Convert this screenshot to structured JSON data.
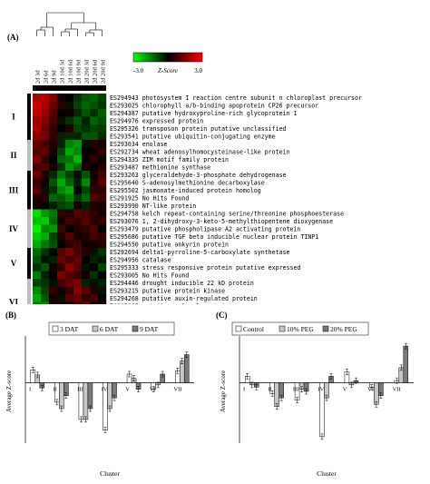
{
  "panel_labels": {
    "a": "(A)",
    "b": "(B)",
    "c": "(C)"
  },
  "colorbar": {
    "min_label": "-3.0",
    "mid_label": "Z-Score",
    "max_label": "3.0",
    "colors": [
      "#00ff00",
      "#000000",
      "#ff0000"
    ]
  },
  "chart_data": [
    {
      "type": "heatmap",
      "columns": [
        "2d 3d",
        "2d 6d",
        "2d 9d",
        "2d 10d 3d",
        "2d 10d 6d",
        "2d 10d 9d",
        "2d 20d 3d",
        "2d 20d 6d",
        "2d 20d 9d"
      ],
      "rows": [
        {
          "id": "ES294943",
          "desc": "photosystem I reaction centre subunit n chloroplast precursor",
          "values": [
            2.0,
            2.2,
            1.5,
            0.3,
            0.0,
            -0.6,
            -1.0,
            -1.2,
            -0.8
          ]
        },
        {
          "id": "ES293025",
          "desc": "chlorophyll a/b-binding apoprotein CP26 precursor",
          "values": [
            2.4,
            2.0,
            1.2,
            0.5,
            -0.2,
            -0.8,
            -1.2,
            -1.0,
            -0.6
          ]
        },
        {
          "id": "ES294387",
          "desc": "putative hydroxyproline-rich glycoprotein 1",
          "values": [
            2.2,
            1.8,
            1.0,
            0.0,
            0.2,
            -0.5,
            -1.0,
            -0.6,
            -1.1
          ]
        },
        {
          "id": "ES294976",
          "desc": "expressed protein",
          "values": [
            1.8,
            1.6,
            0.8,
            -0.2,
            -0.6,
            -1.0,
            -0.4,
            -1.2,
            -0.9
          ]
        },
        {
          "id": "ES295326",
          "desc": "transposon protein putative unclassified",
          "values": [
            2.0,
            1.2,
            0.6,
            0.0,
            0.4,
            -0.8,
            -0.6,
            -0.8,
            -0.7
          ]
        },
        {
          "id": "ES293541",
          "desc": "putative ubiquitin-conjugating enzyme",
          "values": [
            1.6,
            1.4,
            0.5,
            -0.4,
            -0.5,
            -0.4,
            -1.0,
            -1.0,
            -0.5
          ]
        },
        {
          "id": "ES293034",
          "desc": "enolase",
          "values": [
            1.2,
            0.8,
            0.4,
            -0.4,
            -1.5,
            -1.8,
            -0.2,
            0.4,
            0.3
          ]
        },
        {
          "id": "ES292734",
          "desc": "wheat adenosylhomocysteinase-like protein",
          "values": [
            1.0,
            1.2,
            0.2,
            -0.8,
            -2.0,
            -1.6,
            0.0,
            0.2,
            0.5
          ]
        },
        {
          "id": "ES294335",
          "desc": "ZIM motif family protein",
          "values": [
            1.4,
            0.6,
            0.0,
            -1.2,
            -1.4,
            -2.2,
            0.2,
            0.6,
            0.1
          ]
        },
        {
          "id": "ES293487",
          "desc": "methionine synthase",
          "values": [
            0.8,
            1.0,
            0.3,
            -0.6,
            -1.8,
            -1.2,
            0.3,
            0.0,
            0.4
          ]
        },
        {
          "id": "ES293263",
          "desc": "glyceraldehyde-3-phosphate dehydrogenase",
          "values": [
            1.2,
            0.4,
            -0.5,
            -1.4,
            -0.8,
            -0.2,
            -1.0,
            0.2,
            0.8
          ]
        },
        {
          "id": "ES295640",
          "desc": "S-adenosylmethionine decarboxylase",
          "values": [
            0.6,
            0.2,
            -1.0,
            -2.0,
            -1.2,
            -0.4,
            -1.6,
            0.4,
            1.0
          ]
        },
        {
          "id": "ES295502",
          "desc": "jasmonate-induced protein homolog",
          "values": [
            1.0,
            -0.2,
            -0.6,
            -1.6,
            -2.0,
            0.0,
            -0.8,
            0.6,
            0.5
          ]
        },
        {
          "id": "ES291925",
          "desc": "No Hits Found",
          "values": [
            0.4,
            0.5,
            -1.2,
            -1.0,
            -1.5,
            -0.6,
            -1.2,
            1.0,
            0.7
          ]
        },
        {
          "id": "ES293990",
          "desc": "NT-like protein",
          "values": [
            0.2,
            0.0,
            -0.4,
            -0.8,
            -1.0,
            0.2,
            -0.4,
            0.4,
            0.3
          ]
        },
        {
          "id": "ES294758",
          "desc": "kelch repeat-containing serine/threonine phosphoesterase",
          "values": [
            -2.6,
            -1.8,
            -1.4,
            0.6,
            0.4,
            1.0,
            0.8,
            0.6,
            0.2
          ]
        },
        {
          "id": "ES293076",
          "desc": "1, 2-dihydroxy-3-keto-5-methylthiopentene dioxygenase",
          "values": [
            -2.2,
            -2.4,
            -1.2,
            0.2,
            0.8,
            0.6,
            1.0,
            0.4,
            0.6
          ]
        },
        {
          "id": "ES293479",
          "desc": "putative phospholipase A2 activating protein",
          "values": [
            -2.8,
            -1.6,
            -1.8,
            0.8,
            0.0,
            0.4,
            0.6,
            1.0,
            0.0
          ]
        },
        {
          "id": "ES295686",
          "desc": "putative TGF beta inducible nuclear protein TINP1",
          "values": [
            -2.4,
            -2.0,
            -0.8,
            0.4,
            1.0,
            0.2,
            0.4,
            0.8,
            0.6
          ]
        },
        {
          "id": "ES294550",
          "desc": "putative ankyrin protein",
          "values": [
            -2.0,
            -1.4,
            -1.0,
            0.0,
            0.6,
            0.8,
            0.2,
            0.2,
            0.4
          ]
        },
        {
          "id": "ES292694",
          "desc": "delta1-pyrroline-5-carboxylate synthetase",
          "values": [
            -1.2,
            -0.6,
            0.0,
            1.0,
            1.4,
            0.8,
            0.4,
            -0.2,
            -0.6
          ]
        },
        {
          "id": "ES294956",
          "desc": "catalase",
          "values": [
            -1.0,
            -0.2,
            -0.4,
            1.2,
            0.8,
            1.2,
            0.0,
            -0.4,
            -0.2
          ]
        },
        {
          "id": "ES295333",
          "desc": "stress responsive protein putative expressed",
          "values": [
            -0.6,
            -1.0,
            0.2,
            0.6,
            1.6,
            1.0,
            -0.2,
            0.0,
            -0.8
          ]
        },
        {
          "id": "ES293005",
          "desc": "No Hits Found",
          "values": [
            -1.4,
            -0.4,
            0.0,
            1.4,
            1.0,
            0.6,
            0.2,
            -0.6,
            0.0
          ]
        },
        {
          "id": "ES294446",
          "desc": "drought inducible 22 kD protein",
          "values": [
            -0.8,
            -0.6,
            -0.2,
            0.8,
            1.2,
            1.4,
            -0.4,
            -0.2,
            -0.4
          ]
        },
        {
          "id": "ES293215",
          "desc": "putative protein kinase",
          "values": [
            -1.6,
            -0.8,
            0.6,
            0.2,
            0.6,
            1.6,
            1.0,
            0.4,
            -0.2
          ]
        },
        {
          "id": "ES294268",
          "desc": "putative auxin-regulated protein",
          "values": [
            -2.0,
            -1.0,
            0.2,
            -0.2,
            1.0,
            1.2,
            0.6,
            0.8,
            0.0
          ]
        },
        {
          "id": "ES295295",
          "desc": "putative pol polyprotein",
          "values": [
            -1.4,
            -1.6,
            0.4,
            0.4,
            0.2,
            0.8,
            1.4,
            0.2,
            0.4
          ]
        },
        {
          "id": "ES294166",
          "desc": "putative ABA-responsive element-binding protein 3",
          "values": [
            -1.8,
            -0.6,
            -0.2,
            0.0,
            0.8,
            1.0,
            0.8,
            0.6,
            0.2
          ]
        },
        {
          "id": "ES292999",
          "desc": "putative geranylgeranyl reductase",
          "values": [
            -1.2,
            -1.2,
            0.0,
            0.6,
            0.4,
            0.4,
            1.0,
            0.0,
            0.6
          ]
        },
        {
          "id": "ES293682",
          "desc": "dehydration-responsive protein putative expressed",
          "values": [
            -1.0,
            -1.4,
            -0.8,
            -0.2,
            0.0,
            0.2,
            1.6,
            2.6,
            2.8
          ]
        },
        {
          "id": "ES293910",
          "desc": "ATP-dependent Clp protease ATP-binding subunit",
          "values": [
            -1.4,
            -1.0,
            -1.2,
            -0.6,
            0.2,
            0.0,
            1.8,
            2.4,
            2.6
          ]
        },
        {
          "id": "ES295143",
          "desc": "Clp amino terminal domain putative",
          "values": [
            -0.8,
            -1.6,
            -1.0,
            0.0,
            -0.4,
            0.4,
            2.0,
            2.8,
            2.2
          ]
        },
        {
          "id": "ES295052",
          "desc": "ABA 8'-hydroxylase 2",
          "values": [
            -1.2,
            -0.8,
            -1.4,
            -0.4,
            0.0,
            -0.2,
            1.4,
            2.2,
            2.4
          ]
        },
        {
          "id": "ES294388",
          "desc": "ATP binding / kinase/ protein kinase",
          "values": [
            -0.6,
            -1.2,
            -0.8,
            0.2,
            -0.2,
            0.0,
            1.8,
            2.0,
            2.6
          ]
        }
      ],
      "clusters": [
        {
          "name": "I",
          "start": 0,
          "end": 5
        },
        {
          "name": "II",
          "start": 6,
          "end": 9
        },
        {
          "name": "III",
          "start": 10,
          "end": 14
        },
        {
          "name": "IV",
          "start": 15,
          "end": 19
        },
        {
          "name": "V",
          "start": 20,
          "end": 23
        },
        {
          "name": "VI",
          "start": 24,
          "end": 29
        },
        {
          "name": "VII",
          "start": 30,
          "end": 34
        }
      ],
      "ylim": [
        -3,
        3
      ]
    },
    {
      "type": "bar",
      "ylabel": "Average Z-score",
      "xlabel": "Cluster",
      "categories": [
        "I",
        "II",
        "III",
        "IV",
        "V",
        "VI",
        "VII"
      ],
      "series": [
        {
          "name": "3 DAT",
          "color": "#ffffff",
          "values": [
            0.3,
            -0.45,
            -0.85,
            -1.1,
            0.2,
            -0.15,
            0.28
          ]
        },
        {
          "name": "6 DAT",
          "color": "#c8c8c8",
          "values": [
            0.18,
            -0.6,
            -0.85,
            -0.6,
            0.1,
            -0.05,
            0.5
          ]
        },
        {
          "name": "9 DAT",
          "color": "#7a7a7a",
          "values": [
            -0.12,
            -0.3,
            -0.6,
            -0.35,
            -0.15,
            0.2,
            0.65
          ]
        }
      ],
      "legend": "top",
      "ylim": [
        -1.4,
        1.0
      ]
    },
    {
      "type": "bar",
      "ylabel": "Average Z-score",
      "xlabel": "Cluster",
      "categories": [
        "I",
        "II",
        "III",
        "IV",
        "V",
        "VI",
        "VII"
      ],
      "series": [
        {
          "name": "Control",
          "color": "#ffffff",
          "values": [
            0.15,
            -0.25,
            -0.4,
            -1.25,
            0.25,
            -0.1,
            0.05
          ]
        },
        {
          "name": "10% PEG",
          "color": "#c8c8c8",
          "values": [
            -0.05,
            -0.55,
            -0.15,
            -0.35,
            -0.05,
            -0.5,
            0.35
          ]
        },
        {
          "name": "20% PEG",
          "color": "#7a7a7a",
          "values": [
            -0.1,
            -0.35,
            -0.2,
            0.15,
            0.05,
            -0.3,
            0.85
          ]
        }
      ],
      "legend": "top",
      "ylim": [
        -1.4,
        1.0
      ]
    }
  ]
}
